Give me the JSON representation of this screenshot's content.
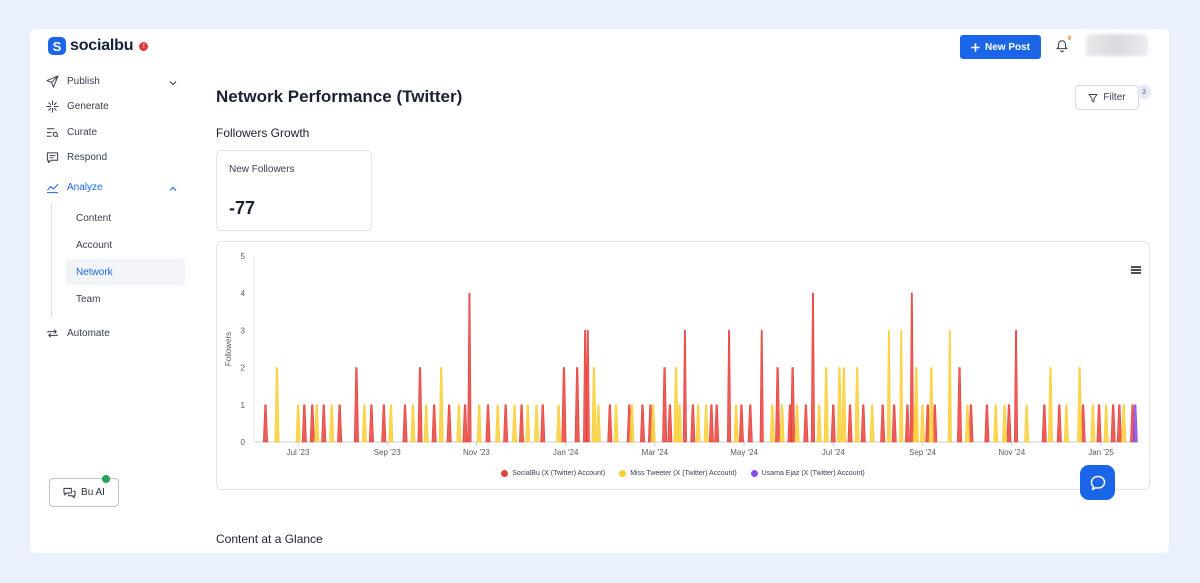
{
  "app": {
    "logo_letter": "S",
    "name": "socialbu",
    "badge": "!"
  },
  "header": {
    "new_post_label": "New Post",
    "notification_count": "6"
  },
  "sidebar": {
    "items": [
      {
        "label": "Publish",
        "icon": "send-icon"
      },
      {
        "label": "Generate",
        "icon": "sparkle-icon"
      },
      {
        "label": "Curate",
        "icon": "curate-icon"
      },
      {
        "label": "Respond",
        "icon": "message-icon"
      },
      {
        "label": "Analyze",
        "icon": "chart-line-icon"
      },
      {
        "label": "Automate",
        "icon": "repeat-icon"
      }
    ],
    "analyze_sub": [
      "Content",
      "Account",
      "Network",
      "Team"
    ],
    "active_sub": "Network",
    "bu_ai_label": "Bu AI"
  },
  "main": {
    "title": "Network Performance (Twitter)",
    "filter_label": "Filter",
    "filter_count": "3",
    "followers_section": "Followers Growth",
    "stat_label": "New Followers",
    "stat_value": "-77",
    "content_section": "Content at a Glance"
  },
  "colors": {
    "accent": "#1b66e8",
    "socialbu": "#e8413c",
    "miss_tweeter": "#f9cf37",
    "usama": "#8b4be8"
  },
  "chart_data": {
    "type": "area",
    "ylabel": "Followers",
    "ylim": [
      0,
      5
    ],
    "yticks": [
      "0",
      "1",
      "2",
      "3",
      "4",
      "5"
    ],
    "xticks": [
      "Jul '23",
      "Sep '23",
      "Nov '23",
      "Jan '24",
      "Mar '24",
      "May '24",
      "Jul '24",
      "Sep '24",
      "Nov '24",
      "Jan '25"
    ],
    "series": [
      {
        "name": "SocialBu (X (Twitter) Account)",
        "color": "#e8413c",
        "spikes": [
          [
            0.013,
            1
          ],
          [
            0.057,
            1
          ],
          [
            0.066,
            1
          ],
          [
            0.079,
            1
          ],
          [
            0.097,
            1
          ],
          [
            0.116,
            2
          ],
          [
            0.133,
            1
          ],
          [
            0.147,
            1
          ],
          [
            0.171,
            1
          ],
          [
            0.188,
            2
          ],
          [
            0.204,
            1
          ],
          [
            0.221,
            1
          ],
          [
            0.239,
            1
          ],
          [
            0.244,
            4
          ],
          [
            0.265,
            1
          ],
          [
            0.285,
            1
          ],
          [
            0.303,
            1
          ],
          [
            0.327,
            1
          ],
          [
            0.351,
            2
          ],
          [
            0.366,
            2
          ],
          [
            0.375,
            3
          ],
          [
            0.378,
            3
          ],
          [
            0.403,
            1
          ],
          [
            0.425,
            1
          ],
          [
            0.44,
            1
          ],
          [
            0.449,
            1
          ],
          [
            0.465,
            2
          ],
          [
            0.471,
            1
          ],
          [
            0.488,
            3
          ],
          [
            0.497,
            1
          ],
          [
            0.518,
            1
          ],
          [
            0.524,
            1
          ],
          [
            0.538,
            3
          ],
          [
            0.552,
            1
          ],
          [
            0.562,
            1
          ],
          [
            0.575,
            3
          ],
          [
            0.593,
            2
          ],
          [
            0.607,
            1
          ],
          [
            0.61,
            2
          ],
          [
            0.625,
            1
          ],
          [
            0.633,
            4
          ],
          [
            0.656,
            1
          ],
          [
            0.675,
            1
          ],
          [
            0.69,
            1
          ],
          [
            0.712,
            1
          ],
          [
            0.725,
            1
          ],
          [
            0.74,
            1
          ],
          [
            0.745,
            4
          ],
          [
            0.763,
            1
          ],
          [
            0.771,
            1
          ],
          [
            0.799,
            2
          ],
          [
            0.812,
            1
          ],
          [
            0.83,
            1
          ],
          [
            0.855,
            1
          ],
          [
            0.863,
            3
          ],
          [
            0.895,
            1
          ],
          [
            0.912,
            1
          ],
          [
            0.939,
            1
          ],
          [
            0.957,
            1
          ],
          [
            0.973,
            1
          ],
          [
            0.98,
            1
          ],
          [
            0.995,
            1
          ]
        ]
      },
      {
        "name": "Miss Tweeter (X (Twitter) Account)",
        "color": "#f9cf37",
        "spikes": [
          [
            0.026,
            2
          ],
          [
            0.05,
            1
          ],
          [
            0.071,
            1
          ],
          [
            0.088,
            1
          ],
          [
            0.125,
            1
          ],
          [
            0.155,
            1
          ],
          [
            0.18,
            1
          ],
          [
            0.195,
            1
          ],
          [
            0.212,
            2
          ],
          [
            0.232,
            1
          ],
          [
            0.255,
            1
          ],
          [
            0.276,
            1
          ],
          [
            0.295,
            1
          ],
          [
            0.31,
            1
          ],
          [
            0.32,
            1
          ],
          [
            0.345,
            1
          ],
          [
            0.385,
            2
          ],
          [
            0.39,
            1
          ],
          [
            0.41,
            1
          ],
          [
            0.428,
            1
          ],
          [
            0.452,
            1
          ],
          [
            0.478,
            2
          ],
          [
            0.482,
            1
          ],
          [
            0.503,
            1
          ],
          [
            0.512,
            1
          ],
          [
            0.546,
            1
          ],
          [
            0.587,
            1
          ],
          [
            0.598,
            1
          ],
          [
            0.615,
            1
          ],
          [
            0.64,
            1
          ],
          [
            0.648,
            2
          ],
          [
            0.663,
            2
          ],
          [
            0.668,
            2
          ],
          [
            0.683,
            2
          ],
          [
            0.7,
            1
          ],
          [
            0.719,
            3
          ],
          [
            0.733,
            3
          ],
          [
            0.749,
            1
          ],
          [
            0.75,
            2
          ],
          [
            0.757,
            1
          ],
          [
            0.767,
            2
          ],
          [
            0.788,
            3
          ],
          [
            0.808,
            1
          ],
          [
            0.84,
            1
          ],
          [
            0.85,
            1
          ],
          [
            0.875,
            1
          ],
          [
            0.902,
            2
          ],
          [
            0.92,
            1
          ],
          [
            0.935,
            2
          ],
          [
            0.95,
            1
          ],
          [
            0.965,
            1
          ],
          [
            0.985,
            1
          ]
        ]
      },
      {
        "name": "Usama Ejaz (X (Twitter) Account)",
        "color": "#8b4be8",
        "spikes": [
          [
            0.998,
            1
          ]
        ]
      }
    ]
  }
}
